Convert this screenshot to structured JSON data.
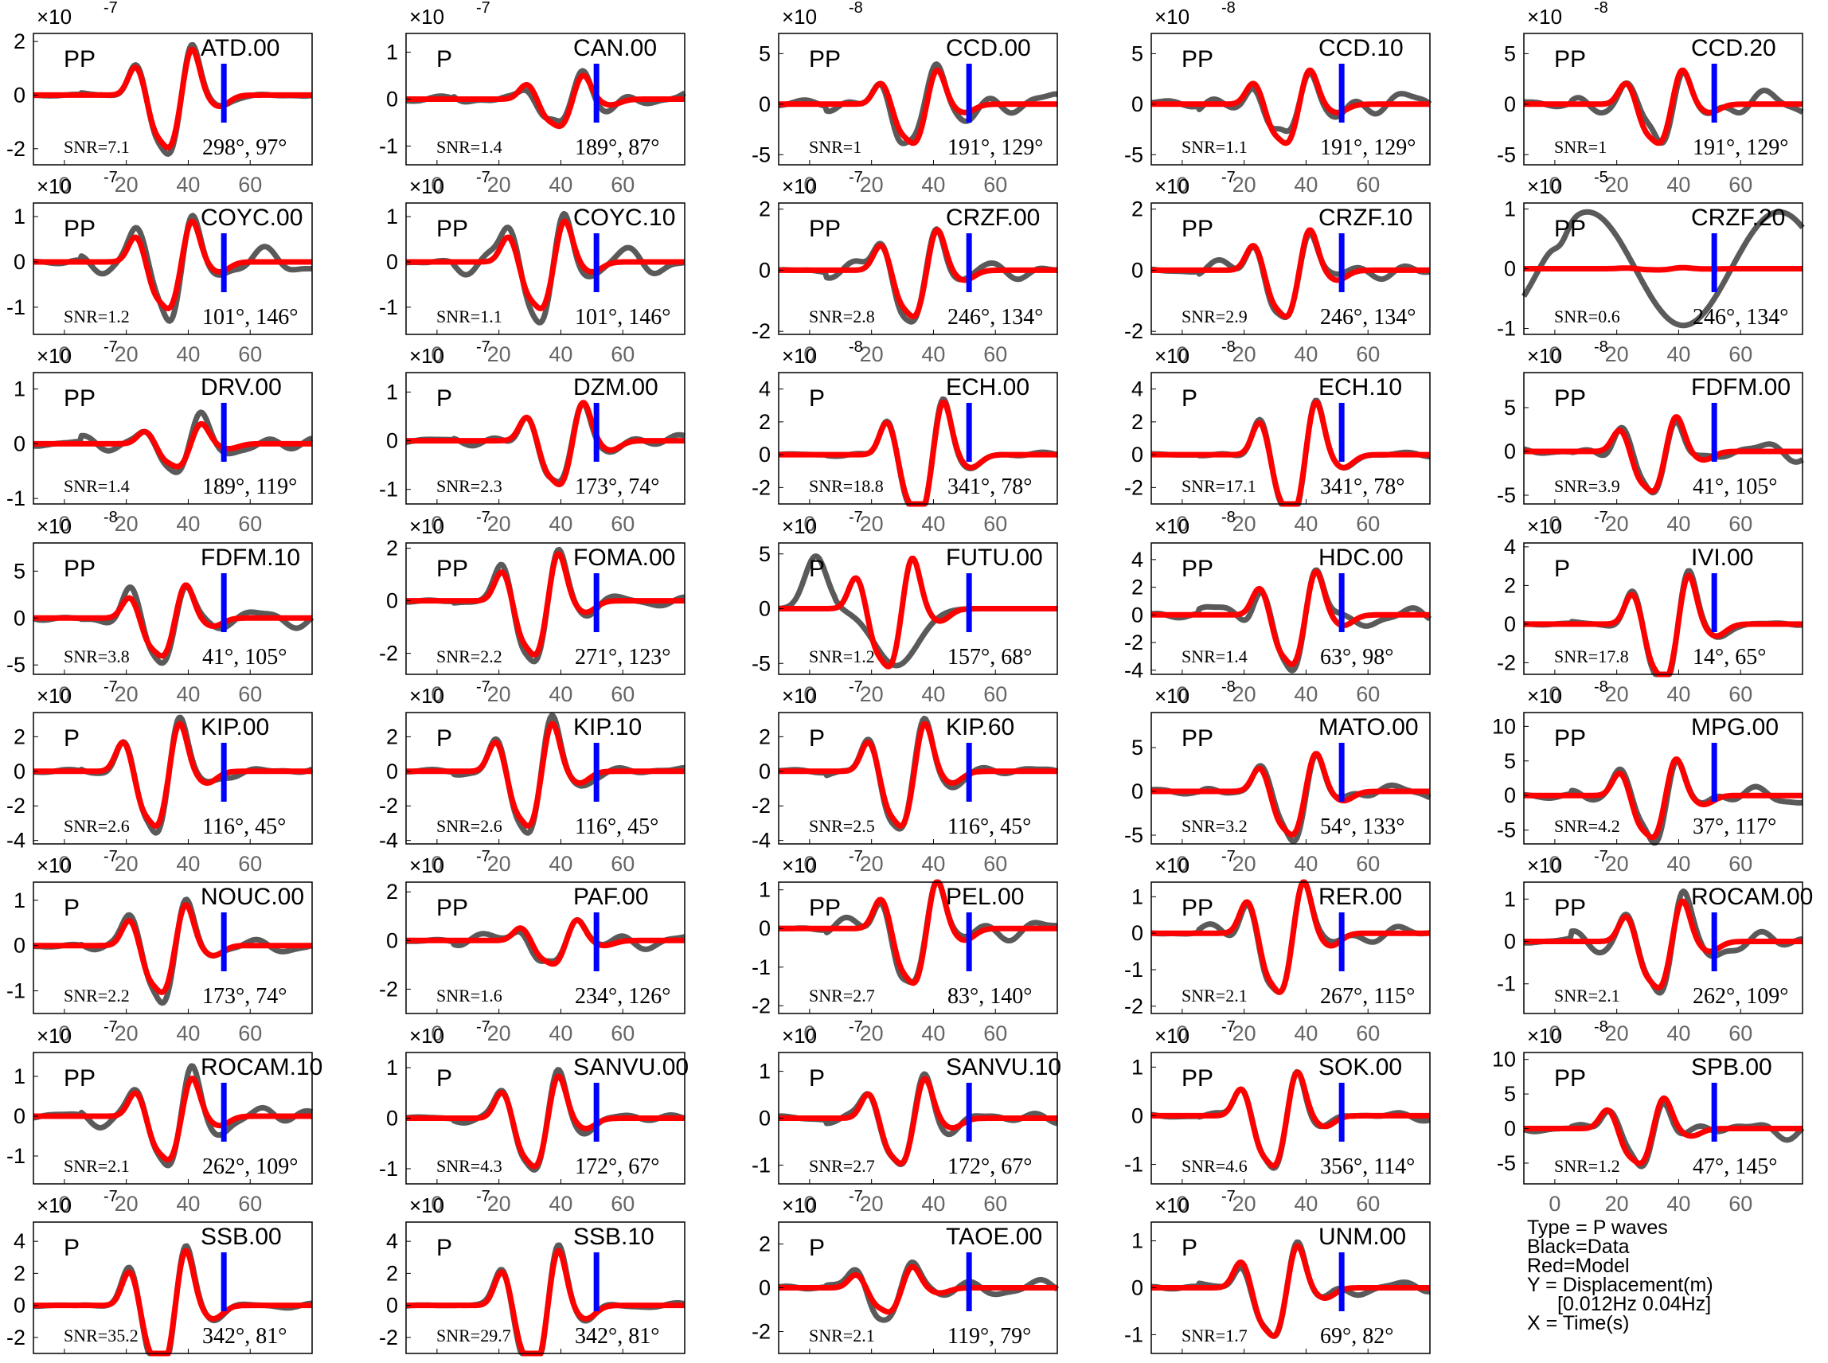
{
  "chart_data": {
    "type": "line",
    "grid": "off",
    "xticks": [
      0,
      20,
      40,
      60
    ],
    "xlim": [
      -10,
      80
    ],
    "colors": {
      "data": "#5a5a5a",
      "model": "#ff0000",
      "marker": "#0000ff",
      "axis": "#000000",
      "tick": "#666666"
    },
    "panels": [
      {
        "station": "ATD.00",
        "phase": "PP",
        "snr": "SNR=7.1",
        "angles": "298°, 97°",
        "exp": "-7",
        "yticks": [
          2,
          0,
          -2
        ],
        "ylim": [
          -2.6,
          2.3
        ],
        "amp": 0.82,
        "shift": 0,
        "noise": 0.05
      },
      {
        "station": "CAN.00",
        "phase": "P",
        "snr": "SNR=1.4",
        "angles": "189°, 87°",
        "exp": "-7",
        "yticks": [
          1,
          0,
          -1
        ],
        "ylim": [
          -1.4,
          1.4
        ],
        "amp": 0.45,
        "shift": 6,
        "noise": 0.35
      },
      {
        "station": "CCD.00",
        "phase": "PP",
        "snr": "SNR=1",
        "angles": "191°, 129°",
        "exp": "-8",
        "yticks": [
          5,
          0,
          -5
        ],
        "ylim": [
          -6,
          7
        ],
        "amp": 0.6,
        "shift": 0,
        "noise": 0.35
      },
      {
        "station": "CCD.10",
        "phase": "PP",
        "snr": "SNR=1.1",
        "angles": "191°, 129°",
        "exp": "-8",
        "yticks": [
          5,
          0,
          -5
        ],
        "ylim": [
          -6,
          7
        ],
        "amp": 0.6,
        "shift": 0,
        "noise": 0.35
      },
      {
        "station": "CCD.20",
        "phase": "PP",
        "snr": "SNR=1",
        "angles": "191°, 129°",
        "exp": "-8",
        "yticks": [
          5,
          0,
          -5
        ],
        "ylim": [
          -6,
          7
        ],
        "amp": 0.6,
        "shift": 0,
        "noise": 0.35
      },
      {
        "station": "COYC.00",
        "phase": "PP",
        "snr": "SNR=1.2",
        "angles": "101°, 146°",
        "exp": "-7",
        "yticks": [
          1,
          0,
          -1
        ],
        "ylim": [
          -1.6,
          1.3
        ],
        "amp": 0.7,
        "shift": 0,
        "noise": 0.3
      },
      {
        "station": "COYC.10",
        "phase": "PP",
        "snr": "SNR=1.1",
        "angles": "101°, 146°",
        "exp": "-7",
        "yticks": [
          1,
          0,
          -1
        ],
        "ylim": [
          -1.6,
          1.3
        ],
        "amp": 0.7,
        "shift": 0,
        "noise": 0.3
      },
      {
        "station": "CRZF.00",
        "phase": "PP",
        "snr": "SNR=2.8",
        "angles": "246°, 134°",
        "exp": "-7",
        "yticks": [
          2,
          0,
          -2
        ],
        "ylim": [
          -2.1,
          2.2
        ],
        "amp": 0.75,
        "shift": 0,
        "noise": 0.2
      },
      {
        "station": "CRZF.10",
        "phase": "PP",
        "snr": "SNR=2.9",
        "angles": "246°, 134°",
        "exp": "-7",
        "yticks": [
          2,
          0,
          -2
        ],
        "ylim": [
          -2.1,
          2.2
        ],
        "amp": 0.75,
        "shift": 0,
        "noise": 0.2
      },
      {
        "station": "CRZF.20",
        "phase": "PP",
        "snr": "SNR=0.6",
        "angles": "246°, 134°",
        "exp": "-5",
        "yticks": [
          1,
          0,
          -1
        ],
        "ylim": [
          -1.1,
          1.1
        ],
        "amp": 0.02,
        "shift": 0,
        "noise": 0.0
      },
      {
        "station": "DRV.00",
        "phase": "PP",
        "snr": "SNR=1.4",
        "angles": "189°, 119°",
        "exp": "-7",
        "yticks": [
          1,
          0,
          -1
        ],
        "ylim": [
          -1.1,
          1.3
        ],
        "amp": 0.35,
        "shift": 3,
        "noise": 0.4
      },
      {
        "station": "DZM.00",
        "phase": "P",
        "snr": "SNR=2.3",
        "angles": "173°, 74°",
        "exp": "-7",
        "yticks": [
          1,
          0,
          -1
        ],
        "ylim": [
          -1.3,
          1.4
        ],
        "amp": 0.7,
        "shift": 6,
        "noise": 0.15
      },
      {
        "station": "ECH.00",
        "phase": "P",
        "snr": "SNR=18.8",
        "angles": "341°, 78°",
        "exp": "-8",
        "yticks": [
          4,
          2,
          0,
          -2
        ],
        "ylim": [
          -3,
          5
        ],
        "amp": 0.8,
        "shift": 2,
        "noise": 0.04
      },
      {
        "station": "ECH.10",
        "phase": "P",
        "snr": "SNR=17.1",
        "angles": "341°, 78°",
        "exp": "-8",
        "yticks": [
          4,
          2,
          0,
          -2
        ],
        "ylim": [
          -3,
          5
        ],
        "amp": 0.8,
        "shift": 2,
        "noise": 0.04
      },
      {
        "station": "FDFM.00",
        "phase": "PP",
        "snr": "SNR=3.9",
        "angles": "41°, 105°",
        "exp": "-8",
        "yticks": [
          5,
          0,
          -5
        ],
        "ylim": [
          -6,
          9
        ],
        "amp": 0.55,
        "shift": -2,
        "noise": 0.25
      },
      {
        "station": "FDFM.10",
        "phase": "PP",
        "snr": "SNR=3.8",
        "angles": "41°, 105°",
        "exp": "-8",
        "yticks": [
          5,
          0,
          -5
        ],
        "ylim": [
          -6,
          8
        ],
        "amp": 0.55,
        "shift": -2,
        "noise": 0.25
      },
      {
        "station": "FOMA.00",
        "phase": "PP",
        "snr": "SNR=2.2",
        "angles": "271°, 123°",
        "exp": "-7",
        "yticks": [
          2,
          0,
          -2
        ],
        "ylim": [
          -2.8,
          2.2
        ],
        "amp": 0.8,
        "shift": -2,
        "noise": 0.1
      },
      {
        "station": "FUTU.00",
        "phase": "P",
        "snr": "SNR=1.2",
        "angles": "157°, 68°",
        "exp": "-7",
        "yticks": [
          5,
          0,
          -5
        ],
        "ylim": [
          -6,
          6
        ],
        "amp": 0.12,
        "shift": -8,
        "noise": 0.0
      },
      {
        "station": "HDC.00",
        "phase": "PP",
        "snr": "SNR=1.4",
        "angles": "63°, 98°",
        "exp": "-8",
        "yticks": [
          4,
          2,
          0,
          -2,
          -4
        ],
        "ylim": [
          -4.3,
          5.2
        ],
        "amp": 0.75,
        "shift": 2,
        "noise": 0.25
      },
      {
        "station": "IVI.00",
        "phase": "P",
        "snr": "SNR=17.8",
        "angles": "14°, 65°",
        "exp": "-7",
        "yticks": [
          4,
          2,
          0,
          -2
        ],
        "ylim": [
          -2.6,
          4.2
        ],
        "amp": 0.75,
        "shift": 2,
        "noise": 0.05
      },
      {
        "station": "KIP.00",
        "phase": "P",
        "snr": "SNR=2.6",
        "angles": "116°, 45°",
        "exp": "-7",
        "yticks": [
          2,
          0,
          -2,
          -4
        ],
        "ylim": [
          -4.2,
          3.4
        ],
        "amp": 0.82,
        "shift": -4,
        "noise": 0.1
      },
      {
        "station": "KIP.10",
        "phase": "P",
        "snr": "SNR=2.6",
        "angles": "116°, 45°",
        "exp": "-7",
        "yticks": [
          2,
          0,
          -2,
          -4
        ],
        "ylim": [
          -4.2,
          3.4
        ],
        "amp": 0.82,
        "shift": -4,
        "noise": 0.1
      },
      {
        "station": "KIP.60",
        "phase": "P",
        "snr": "SNR=2.5",
        "angles": "116°, 45°",
        "exp": "-7",
        "yticks": [
          2,
          0,
          -2,
          -4
        ],
        "ylim": [
          -4.2,
          3.4
        ],
        "amp": 0.82,
        "shift": -4,
        "noise": 0.1
      },
      {
        "station": "MATO.00",
        "phase": "PP",
        "snr": "SNR=3.2",
        "angles": "54°, 133°",
        "exp": "-8",
        "yticks": [
          5,
          0,
          -5
        ],
        "ylim": [
          -6,
          9
        ],
        "amp": 0.6,
        "shift": 2,
        "noise": 0.2
      },
      {
        "station": "MPG.00",
        "phase": "PP",
        "snr": "SNR=4.2",
        "angles": "37°, 117°",
        "exp": "-8",
        "yticks": [
          10,
          5,
          0,
          -5
        ],
        "ylim": [
          -7,
          12
        ],
        "amp": 0.55,
        "shift": -2,
        "noise": 0.25
      },
      {
        "station": "NOUC.00",
        "phase": "P",
        "snr": "SNR=2.2",
        "angles": "173°, 74°",
        "exp": "-7",
        "yticks": [
          1,
          0,
          -1
        ],
        "ylim": [
          -1.5,
          1.4
        ],
        "amp": 0.75,
        "shift": -2,
        "noise": 0.15
      },
      {
        "station": "PAF.00",
        "phase": "PP",
        "snr": "SNR=1.6",
        "angles": "234°, 126°",
        "exp": "-7",
        "yticks": [
          2,
          0,
          -2
        ],
        "ylim": [
          -3,
          2.4
        ],
        "amp": 0.35,
        "shift": 4,
        "noise": 0.35
      },
      {
        "station": "PEL.00",
        "phase": "PP",
        "snr": "SNR=2.7",
        "angles": "83°, 140°",
        "exp": "-7",
        "yticks": [
          1,
          0,
          -1,
          -2
        ],
        "ylim": [
          -2.2,
          1.2
        ],
        "amp": 0.7,
        "shift": 0,
        "noise": 0.2
      },
      {
        "station": "RER.00",
        "phase": "PP",
        "snr": "SNR=2.1",
        "angles": "267°, 115°",
        "exp": "-7",
        "yticks": [
          1,
          0,
          -1,
          -2
        ],
        "ylim": [
          -2.2,
          1.4
        ],
        "amp": 0.8,
        "shift": -2,
        "noise": 0.15
      },
      {
        "station": "ROCAM.00",
        "phase": "PP",
        "snr": "SNR=2.1",
        "angles": "262°, 109°",
        "exp": "-7",
        "yticks": [
          1,
          0,
          -1
        ],
        "ylim": [
          -1.7,
          1.4
        ],
        "amp": 0.7,
        "shift": 0,
        "noise": 0.25
      },
      {
        "station": "ROCAM.10",
        "phase": "PP",
        "snr": "SNR=2.1",
        "angles": "262°, 109°",
        "exp": "-7",
        "yticks": [
          1,
          0,
          -1
        ],
        "ylim": [
          -1.7,
          1.6
        ],
        "amp": 0.7,
        "shift": 0,
        "noise": 0.25
      },
      {
        "station": "SANVU.00",
        "phase": "P",
        "snr": "SNR=4.3",
        "angles": "172°, 67°",
        "exp": "-7",
        "yticks": [
          1,
          0,
          -1
        ],
        "ylim": [
          -1.3,
          1.3
        ],
        "amp": 0.8,
        "shift": -2,
        "noise": 0.1
      },
      {
        "station": "SANVU.10",
        "phase": "P",
        "snr": "SNR=2.7",
        "angles": "172°, 67°",
        "exp": "-7",
        "yticks": [
          1,
          0,
          -1
        ],
        "ylim": [
          -1.4,
          1.4
        ],
        "amp": 0.75,
        "shift": -4,
        "noise": 0.15
      },
      {
        "station": "SOK.00",
        "phase": "PP",
        "snr": "SNR=4.6",
        "angles": "356°, 114°",
        "exp": "-7",
        "yticks": [
          1,
          0,
          -1
        ],
        "ylim": [
          -1.4,
          1.3
        ],
        "amp": 0.8,
        "shift": -4,
        "noise": 0.1
      },
      {
        "station": "SPB.00",
        "phase": "PP",
        "snr": "SNR=1.2",
        "angles": "47°, 145°",
        "exp": "-8",
        "yticks": [
          10,
          5,
          0,
          -5
        ],
        "ylim": [
          -8,
          11
        ],
        "amp": 0.5,
        "shift": -6,
        "noise": 0.3
      },
      {
        "station": "SSB.00",
        "phase": "P",
        "snr": "SNR=35.2",
        "angles": "342°, 81°",
        "exp": "-7",
        "yticks": [
          4,
          2,
          0,
          -2
        ],
        "ylim": [
          -3,
          5.2
        ],
        "amp": 0.82,
        "shift": -2,
        "noise": 0.04
      },
      {
        "station": "SSB.10",
        "phase": "P",
        "snr": "SNR=29.7",
        "angles": "342°, 81°",
        "exp": "-7",
        "yticks": [
          4,
          2,
          0,
          -2
        ],
        "ylim": [
          -3,
          5.2
        ],
        "amp": 0.82,
        "shift": -2,
        "noise": 0.04
      },
      {
        "station": "TAOE.00",
        "phase": "P",
        "snr": "SNR=2.1",
        "angles": "119°, 79°",
        "exp": "-7",
        "yticks": [
          2,
          0,
          -2
        ],
        "ylim": [
          -3,
          3
        ],
        "amp": 0.4,
        "shift": -8,
        "noise": 0.35
      },
      {
        "station": "UNM.00",
        "phase": "P",
        "snr": "SNR=1.7",
        "angles": "69°, 82°",
        "exp": "-7",
        "yticks": [
          1,
          0,
          -1
        ],
        "ylim": [
          -1.4,
          1.4
        ],
        "amp": 0.8,
        "shift": -4,
        "noise": 0.15
      }
    ],
    "legend": {
      "type": "Type = P waves",
      "black": "Black=Data",
      "red": "Red=Model",
      "y": "Y = Displacement(m)",
      "band": "[0.012Hz 0.04Hz]",
      "x": "X = Time(s)"
    }
  }
}
